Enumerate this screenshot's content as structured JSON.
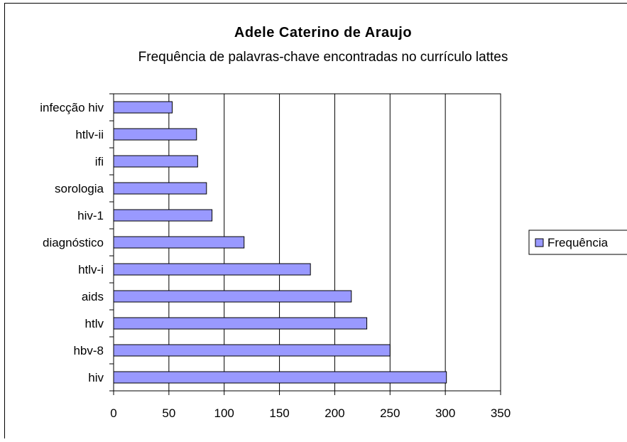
{
  "chart_data": {
    "type": "bar",
    "orientation": "horizontal",
    "title": "Adele Caterino de Araujo",
    "subtitle": "Frequência de palavras-chave encontradas no currículo lattes",
    "categories": [
      "infecção hiv",
      "htlv-ii",
      "ifi",
      "sorologia",
      "hiv-1",
      "diagnóstico",
      "htlv-i",
      "aids",
      "htlv",
      "hbv-8",
      "hiv"
    ],
    "series": [
      {
        "name": "Frequência",
        "values": [
          53,
          75,
          76,
          84,
          89,
          118,
          178,
          215,
          229,
          250,
          301
        ],
        "color": "#9999ff"
      }
    ],
    "xlim": [
      0,
      350
    ],
    "xticks": [
      0,
      50,
      100,
      150,
      200,
      250,
      300,
      350
    ],
    "grid": "vertical",
    "legend": "right"
  }
}
